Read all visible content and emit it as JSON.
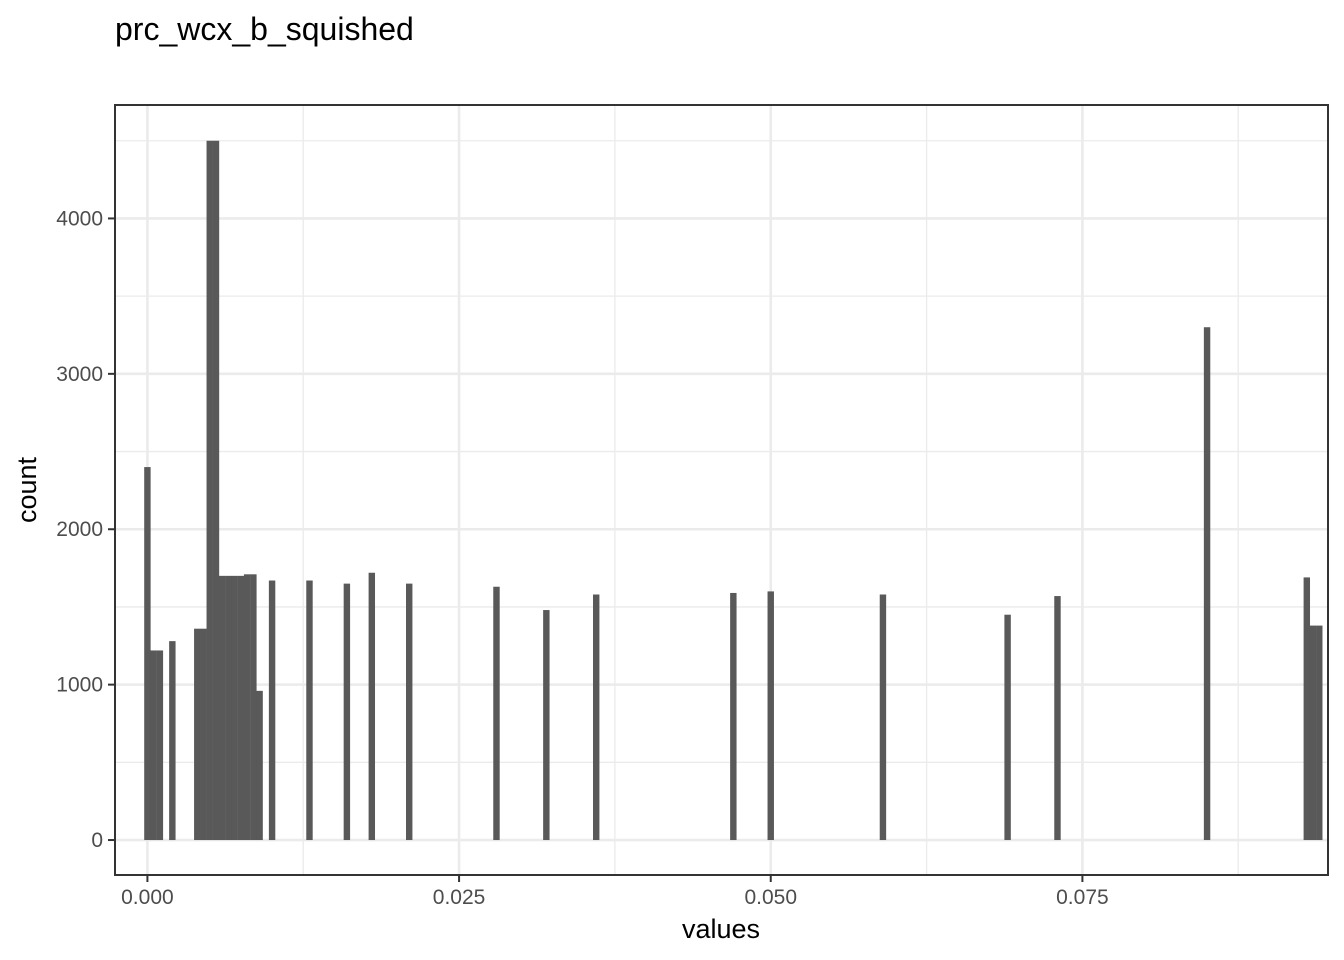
{
  "chart_data": {
    "type": "bar",
    "title": "prc_wcx_b_squished",
    "xlabel": "values",
    "ylabel": "count",
    "xlim": [
      -0.0026,
      0.0947
    ],
    "ylim": [
      -225,
      4730
    ],
    "x_ticks": [
      0.0,
      0.025,
      0.05,
      0.075
    ],
    "x_tick_labels": [
      "0.000",
      "0.025",
      "0.050",
      "0.075"
    ],
    "y_ticks": [
      0,
      1000,
      2000,
      3000,
      4000
    ],
    "y_tick_labels": [
      "0",
      "1000",
      "2000",
      "3000",
      "4000"
    ],
    "grid": true,
    "bin_width": 0.000515,
    "bins": [
      {
        "x": 0.0,
        "count": 2400
      },
      {
        "x": 0.0005,
        "count": 1220
      },
      {
        "x": 0.001,
        "count": 1220
      },
      {
        "x": 0.002,
        "count": 1280
      },
      {
        "x": 0.004,
        "count": 1360
      },
      {
        "x": 0.0045,
        "count": 1360
      },
      {
        "x": 0.005,
        "count": 4500
      },
      {
        "x": 0.0055,
        "count": 4500
      },
      {
        "x": 0.006,
        "count": 1700
      },
      {
        "x": 0.0065,
        "count": 1700
      },
      {
        "x": 0.007,
        "count": 1700
      },
      {
        "x": 0.0075,
        "count": 1700
      },
      {
        "x": 0.008,
        "count": 1710
      },
      {
        "x": 0.0085,
        "count": 1710
      },
      {
        "x": 0.009,
        "count": 960
      },
      {
        "x": 0.01,
        "count": 1670
      },
      {
        "x": 0.013,
        "count": 1670
      },
      {
        "x": 0.016,
        "count": 1650
      },
      {
        "x": 0.018,
        "count": 1720
      },
      {
        "x": 0.021,
        "count": 1650
      },
      {
        "x": 0.028,
        "count": 1630
      },
      {
        "x": 0.032,
        "count": 1480
      },
      {
        "x": 0.036,
        "count": 1580
      },
      {
        "x": 0.047,
        "count": 1590
      },
      {
        "x": 0.05,
        "count": 1600
      },
      {
        "x": 0.059,
        "count": 1580
      },
      {
        "x": 0.069,
        "count": 1450
      },
      {
        "x": 0.073,
        "count": 1570
      },
      {
        "x": 0.085,
        "count": 3300
      },
      {
        "x": 0.093,
        "count": 1690
      },
      {
        "x": 0.0935,
        "count": 1380
      },
      {
        "x": 0.094,
        "count": 1380
      }
    ]
  }
}
